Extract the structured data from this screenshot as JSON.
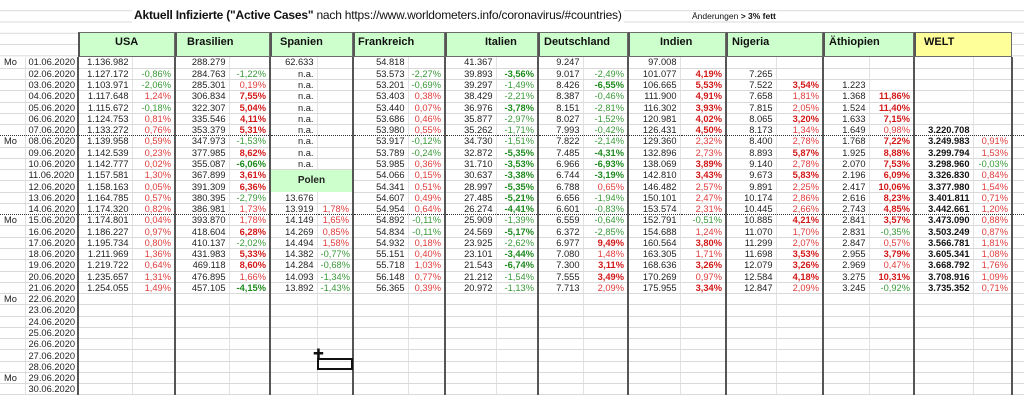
{
  "title_bold": "Aktuell Infizierte (\"Active Cases\"",
  "title_rest": " nach https://www.worldometers.info/coronavirus/#countries)",
  "note_prefix": "Änderungen ",
  "note_bold": "> 3% fett",
  "headers": [
    "USA",
    "Brasilien",
    "Spanien",
    "Frankreich",
    "Italien",
    "Deutschland",
    "Indien",
    "Nigeria",
    "Äthiopien",
    "WELT"
  ],
  "polen_label": "Polen",
  "colors": {
    "header_green": "#ccffcc",
    "welt_yellow": "#ffff99",
    "positive": "#e03c3c",
    "negative": "#3a9a3a"
  },
  "rows": [
    [
      "Mo",
      "01.06.2020",
      "1.136.982",
      "",
      "288.279",
      "",
      "62.633",
      "",
      "54.818",
      "",
      "41.367",
      "",
      "9.247",
      "",
      "97.008",
      "",
      "",
      "",
      "",
      "",
      "",
      ""
    ],
    [
      "",
      "02.06.2020",
      "1.127.172",
      "-0,86%",
      "284.763",
      "-1,22%",
      "n.a.",
      "",
      "53.573",
      "-2,27%",
      "39.893",
      "-3,56%",
      "9.017",
      "-2,49%",
      "101.077",
      "4,19%",
      "7.265",
      "",
      "",
      "",
      "",
      ""
    ],
    [
      "",
      "03.06.2020",
      "1.103.971",
      "-2,06%",
      "285.301",
      "0,19%",
      "n.a.",
      "",
      "53.201",
      "-0,69%",
      "39.297",
      "-1,49%",
      "8.426",
      "-6,55%",
      "106.665",
      "5,53%",
      "7.522",
      "3,54%",
      "1.223",
      "",
      "",
      ""
    ],
    [
      "",
      "04.06.2020",
      "1.117.648",
      "1,24%",
      "306.834",
      "7,55%",
      "n.a.",
      "",
      "53.403",
      "0,38%",
      "38.429",
      "-2,21%",
      "8.387",
      "-0,46%",
      "111.900",
      "4,91%",
      "7.658",
      "1,81%",
      "1.368",
      "11,86%",
      "",
      ""
    ],
    [
      "",
      "05.06.2020",
      "1.115.672",
      "-0,18%",
      "322.307",
      "5,04%",
      "n.a.",
      "",
      "53.440",
      "0,07%",
      "36.976",
      "-3,78%",
      "8.151",
      "-2,81%",
      "116.302",
      "3,93%",
      "7.815",
      "2,05%",
      "1.524",
      "11,40%",
      "",
      ""
    ],
    [
      "",
      "06.06.2020",
      "1.124.753",
      "0,81%",
      "335.546",
      "4,11%",
      "n.a.",
      "",
      "53.686",
      "0,46%",
      "35.877",
      "-2,97%",
      "8.027",
      "-1,52%",
      "120.981",
      "4,02%",
      "8.065",
      "3,20%",
      "1.633",
      "7,15%",
      "",
      ""
    ],
    [
      "",
      "07.06.2020",
      "1.133.272",
      "0,76%",
      "353.379",
      "5,31%",
      "n.a.",
      "",
      "53.980",
      "0,55%",
      "35.262",
      "-1,71%",
      "7.993",
      "-0,42%",
      "126.431",
      "4,50%",
      "8.173",
      "1,34%",
      "1.649",
      "0,98%",
      "3.220.708",
      ""
    ],
    [
      "Mo",
      "08.06.2020",
      "1.139.958",
      "0,59%",
      "347.973",
      "-1,53%",
      "n.a.",
      "",
      "53.917",
      "-0,12%",
      "34.730",
      "-1,51%",
      "7.822",
      "-2,14%",
      "129.360",
      "2,32%",
      "8.400",
      "2,78%",
      "1.768",
      "7,22%",
      "3.249.983",
      "0,91%"
    ],
    [
      "",
      "09.06.2020",
      "1.142.539",
      "0,23%",
      "377.985",
      "8,62%",
      "n.a.",
      "",
      "53.789",
      "-0,24%",
      "32.872",
      "-5,35%",
      "7.485",
      "-4,31%",
      "132.896",
      "2,73%",
      "8.893",
      "5,87%",
      "1.925",
      "8,88%",
      "3.299.794",
      "1,53%"
    ],
    [
      "",
      "10.06.2020",
      "1.142.777",
      "0,02%",
      "355.087",
      "-6,06%",
      "n.a.",
      "",
      "53.985",
      "0,36%",
      "31.710",
      "-3,53%",
      "6.966",
      "-6,93%",
      "138.069",
      "3,89%",
      "9.140",
      "2,78%",
      "2.070",
      "7,53%",
      "3.298.960",
      "-0,03%"
    ],
    [
      "",
      "11.06.2020",
      "1.157.581",
      "1,30%",
      "367.899",
      "3,61%",
      "",
      "",
      "54.066",
      "0,15%",
      "30.637",
      "-3,38%",
      "6.744",
      "-3,19%",
      "142.810",
      "3,43%",
      "9.673",
      "5,83%",
      "2.196",
      "6,09%",
      "3.326.830",
      "0,84%"
    ],
    [
      "",
      "12.06.2020",
      "1.158.163",
      "0,05%",
      "391.309",
      "6,36%",
      "",
      "",
      "54.341",
      "0,51%",
      "28.997",
      "-5,35%",
      "6.788",
      "0,65%",
      "146.482",
      "2,57%",
      "9.891",
      "2,25%",
      "2.417",
      "10,06%",
      "3.377.980",
      "1,54%"
    ],
    [
      "",
      "13.06.2020",
      "1.164.785",
      "0,57%",
      "380.395",
      "-2,79%",
      "13.676",
      "",
      "54.607",
      "0,49%",
      "27.485",
      "-5,21%",
      "6.656",
      "-1,94%",
      "150.101",
      "2,47%",
      "10.174",
      "2,86%",
      "2.616",
      "8,23%",
      "3.401.811",
      "0,71%"
    ],
    [
      "",
      "14.06.2020",
      "1.174.320",
      "0,82%",
      "386.981",
      "1,73%",
      "13.919",
      "1,78%",
      "54.954",
      "0,64%",
      "26.274",
      "-4,41%",
      "6.601",
      "-0,83%",
      "153.574",
      "2,31%",
      "10.445",
      "2,66%",
      "2.743",
      "4,85%",
      "3.442.661",
      "1,20%"
    ],
    [
      "Mo",
      "15.06.2020",
      "1.174.801",
      "0,04%",
      "393.870",
      "1,78%",
      "14.149",
      "1,65%",
      "54.892",
      "-0,11%",
      "25.909",
      "-1,39%",
      "6.559",
      "-0,64%",
      "152.791",
      "-0,51%",
      "10.885",
      "4,21%",
      "2.841",
      "3,57%",
      "3.473.090",
      "0,88%"
    ],
    [
      "",
      "16.06.2020",
      "1.186.227",
      "0,97%",
      "418.604",
      "6,28%",
      "14.269",
      "0,85%",
      "54.834",
      "-0,11%",
      "24.569",
      "-5,17%",
      "6.372",
      "-2,85%",
      "154.688",
      "1,24%",
      "11.070",
      "1,70%",
      "2.831",
      "-0,35%",
      "3.503.249",
      "0,87%"
    ],
    [
      "",
      "17.06.2020",
      "1.195.734",
      "0,80%",
      "410.137",
      "-2,02%",
      "14.494",
      "1,58%",
      "54.932",
      "0,18%",
      "23.925",
      "-2,62%",
      "6.977",
      "9,49%",
      "160.564",
      "3,80%",
      "11.299",
      "2,07%",
      "2.847",
      "0,57%",
      "3.566.781",
      "1,81%"
    ],
    [
      "",
      "18.06.2020",
      "1.211.969",
      "1,36%",
      "431.983",
      "5,33%",
      "14.382",
      "-0,77%",
      "55.151",
      "0,40%",
      "23.101",
      "-3,44%",
      "7.080",
      "1,48%",
      "163.305",
      "1,71%",
      "11.698",
      "3,53%",
      "2.955",
      "3,79%",
      "3.605.341",
      "1,08%"
    ],
    [
      "",
      "19.06.2020",
      "1.219.722",
      "0,64%",
      "469.118",
      "8,60%",
      "14.284",
      "-0,68%",
      "55.718",
      "1,03%",
      "21.543",
      "-6,74%",
      "7.300",
      "3,11%",
      "168.636",
      "3,26%",
      "12.079",
      "3,26%",
      "2.969",
      "0,47%",
      "3.668.792",
      "1,76%"
    ],
    [
      "",
      "20.06.2020",
      "1.235.657",
      "1,31%",
      "476.895",
      "1,66%",
      "14.093",
      "-1,34%",
      "56.148",
      "0,77%",
      "21.212",
      "-1,54%",
      "7.555",
      "3,49%",
      "170.269",
      "0,97%",
      "12.584",
      "4,18%",
      "3.275",
      "10,31%",
      "3.708.916",
      "1,09%"
    ],
    [
      "",
      "21.06.2020",
      "1.254.055",
      "1,49%",
      "457.105",
      "-4,15%",
      "13.892",
      "-1,43%",
      "56.365",
      "0,39%",
      "20.972",
      "-1,13%",
      "7.713",
      "2,09%",
      "175.955",
      "3,34%",
      "12.847",
      "2,09%",
      "3.245",
      "-0,92%",
      "3.735.352",
      "0,71%"
    ],
    [
      "Mo",
      "22.06.2020"
    ],
    [
      "",
      "23.06.2020"
    ],
    [
      "",
      "24.06.2020"
    ],
    [
      "",
      "25.06.2020"
    ],
    [
      "",
      "26.06.2020"
    ],
    [
      "",
      "27.06.2020"
    ],
    [
      "",
      "28.06.2020"
    ],
    [
      "Mo",
      "29.06.2020"
    ],
    [
      "",
      "30.06.2020"
    ]
  ]
}
